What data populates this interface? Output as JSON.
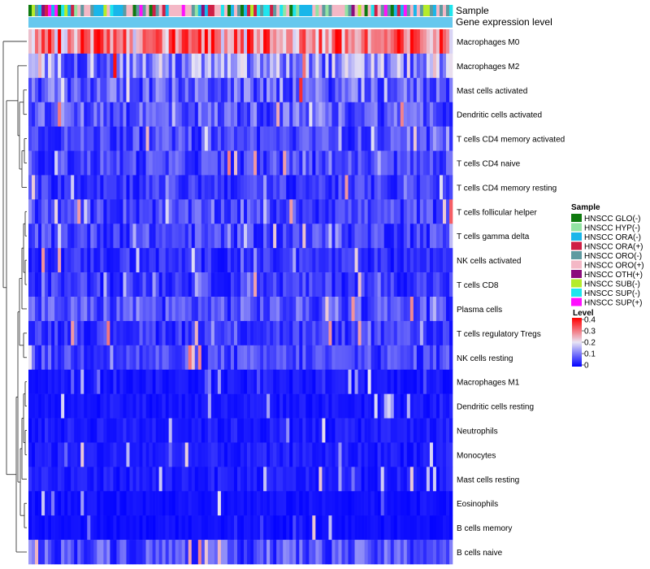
{
  "chart_data": {
    "type": "heatmap",
    "title": "",
    "annotation_tracks": [
      "Sample",
      "Gene expression level"
    ],
    "rows": [
      {
        "label": "Macrophages M0",
        "mean": 0.26
      },
      {
        "label": "Macrophages M2",
        "mean": 0.12
      },
      {
        "label": "Mast cells activated",
        "mean": 0.08
      },
      {
        "label": "Dendritic cells activated",
        "mean": 0.08
      },
      {
        "label": "T cells CD4 memory activated",
        "mean": 0.06
      },
      {
        "label": "T cells CD4 naive",
        "mean": 0.06
      },
      {
        "label": "T cells CD4 memory resting",
        "mean": 0.05
      },
      {
        "label": "T cells follicular helper",
        "mean": 0.06
      },
      {
        "label": "T cells gamma delta",
        "mean": 0.06
      },
      {
        "label": "NK cells activated",
        "mean": 0.04
      },
      {
        "label": "T cells CD8",
        "mean": 0.05
      },
      {
        "label": "Plasma cells",
        "mean": 0.07
      },
      {
        "label": "T cells regulatory  Tregs",
        "mean": 0.05
      },
      {
        "label": "NK cells resting",
        "mean": 0.06
      },
      {
        "label": "Macrophages M1",
        "mean": 0.02
      },
      {
        "label": "Dendritic cells resting",
        "mean": 0.02
      },
      {
        "label": "Neutrophils",
        "mean": 0.025
      },
      {
        "label": "Monocytes",
        "mean": 0.025
      },
      {
        "label": "Mast cells resting",
        "mean": 0.025
      },
      {
        "label": "Eosinophils",
        "mean": 0.015
      },
      {
        "label": "B cells memory",
        "mean": 0.012
      },
      {
        "label": "B cells naive",
        "mean": 0.07
      }
    ],
    "n_columns": 130,
    "sample_legend": {
      "title": "Sample",
      "entries": [
        {
          "label": "HNSCC GLO(-)",
          "color": "#0f7a0f"
        },
        {
          "label": "HNSCC HYP(-)",
          "color": "#92e3a3"
        },
        {
          "label": "HNSCC ORA(-)",
          "color": "#19b6ea"
        },
        {
          "label": "HNSCC ORA(+)",
          "color": "#cf1f45"
        },
        {
          "label": "HNSCC ORO(-)",
          "color": "#5e9aa0"
        },
        {
          "label": "HNSCC ORO(+)",
          "color": "#f4b8c6"
        },
        {
          "label": "HNSCC OTH(+)",
          "color": "#8b0c7c"
        },
        {
          "label": "HNSCC SUB(-)",
          "color": "#b5ec2a"
        },
        {
          "label": "HNSCC SUP(-)",
          "color": "#1ee5ee"
        },
        {
          "label": "HNSCC SUP(+)",
          "color": "#ff10ff"
        }
      ]
    },
    "level_legend": {
      "title": "Level",
      "ticks": [
        "0.4",
        "0.3",
        "0.2",
        "0.1",
        "0"
      ],
      "range": [
        0,
        0.4
      ],
      "colors": [
        "#0000ff",
        "#e8e4f4",
        "#ff0000"
      ]
    },
    "expression_track_color": "#66c8ee"
  }
}
